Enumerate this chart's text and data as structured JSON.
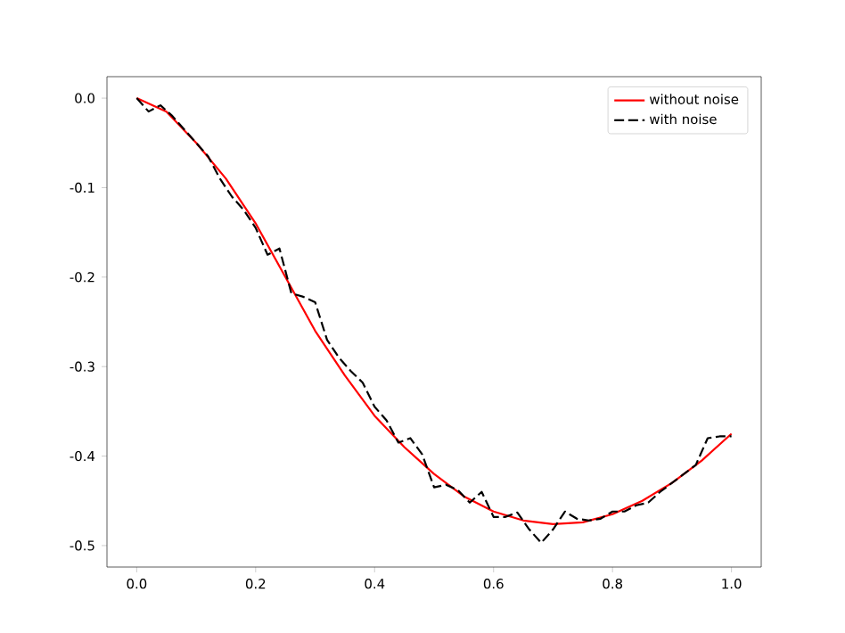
{
  "chart_data": {
    "type": "line",
    "xlim": [
      -0.05,
      1.05
    ],
    "ylim": [
      -0.524,
      0.024
    ],
    "xticks": [
      {
        "value": 0,
        "label": "0.0"
      },
      {
        "value": 0.2,
        "label": "0.2"
      },
      {
        "value": 0.4,
        "label": "0.4"
      },
      {
        "value": 0.6,
        "label": "0.6"
      },
      {
        "value": 0.8,
        "label": "0.8"
      },
      {
        "value": 1,
        "label": "1.0"
      }
    ],
    "yticks": [
      {
        "value": 0,
        "label": "0.0"
      },
      -0.1,
      -0.2,
      -0.3,
      -0.4,
      -0.5
    ],
    "legend": "top right",
    "grid": false,
    "series": [
      {
        "name": "without noise",
        "color": "#ff0000",
        "line_style": "solid",
        "x": [
          0,
          0.05,
          0.1,
          0.15,
          0.2,
          0.25,
          0.3,
          0.35,
          0.4,
          0.45,
          0.5,
          0.55,
          0.6,
          0.65,
          0.7,
          0.75,
          0.8,
          0.85,
          0.9,
          0.95,
          1.0
        ],
        "values": [
          0,
          -0.015,
          -0.05,
          -0.09,
          -0.14,
          -0.2,
          -0.26,
          -0.31,
          -0.355,
          -0.39,
          -0.42,
          -0.445,
          -0.462,
          -0.472,
          -0.476,
          -0.474,
          -0.465,
          -0.45,
          -0.43,
          -0.405,
          -0.375
        ]
      },
      {
        "name": "with noise",
        "color": "#000000",
        "line_style": "dashed",
        "x": [
          0,
          0.02,
          0.04,
          0.06,
          0.08,
          0.1,
          0.12,
          0.14,
          0.16,
          0.18,
          0.2,
          0.22,
          0.24,
          0.26,
          0.28,
          0.3,
          0.32,
          0.34,
          0.36,
          0.38,
          0.4,
          0.42,
          0.44,
          0.46,
          0.48,
          0.5,
          0.52,
          0.54,
          0.56,
          0.58,
          0.6,
          0.62,
          0.64,
          0.66,
          0.68,
          0.7,
          0.72,
          0.74,
          0.76,
          0.78,
          0.8,
          0.82,
          0.84,
          0.86,
          0.88,
          0.9,
          0.92,
          0.94,
          0.96,
          0.98,
          1.0
        ],
        "values": [
          0,
          -0.015,
          -0.008,
          -0.02,
          -0.035,
          -0.05,
          -0.065,
          -0.09,
          -0.11,
          -0.125,
          -0.145,
          -0.175,
          -0.168,
          -0.218,
          -0.222,
          -0.228,
          -0.27,
          -0.29,
          -0.305,
          -0.318,
          -0.345,
          -0.36,
          -0.385,
          -0.38,
          -0.398,
          -0.435,
          -0.432,
          -0.438,
          -0.452,
          -0.44,
          -0.468,
          -0.468,
          -0.463,
          -0.482,
          -0.497,
          -0.482,
          -0.462,
          -0.47,
          -0.472,
          -0.47,
          -0.462,
          -0.462,
          -0.455,
          -0.452,
          -0.44,
          -0.43,
          -0.42,
          -0.41,
          -0.38,
          -0.378,
          -0.378
        ]
      }
    ]
  }
}
